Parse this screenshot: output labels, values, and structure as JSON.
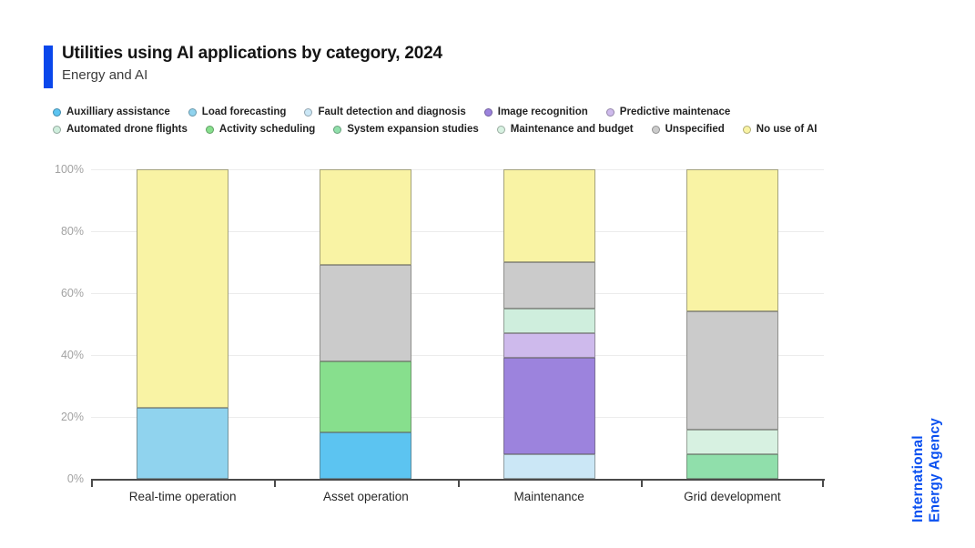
{
  "header": {
    "title": "Utilities using AI applications by category, 2024",
    "subtitle": "Energy and AI"
  },
  "branding": {
    "accent_color": "#0a47eb",
    "logo_color": "#0a50f0",
    "agency_line1": "International",
    "agency_line2": "Energy Agency"
  },
  "chart_data": {
    "type": "bar",
    "variant": "stacked-100-percent",
    "title": "Utilities using AI applications by category, 2024",
    "xlabel": "",
    "ylabel": "",
    "unit": "%",
    "ylim": [
      0,
      100
    ],
    "yticks": [
      0,
      20,
      40,
      60,
      80,
      100
    ],
    "ytick_suffix": "%",
    "grid": true,
    "legend_position": "top",
    "legend_layout": [
      [
        0,
        1,
        2,
        3,
        4
      ],
      [
        5,
        6,
        7,
        8,
        9,
        10
      ]
    ],
    "categories": [
      "Real-time operation",
      "Asset operation",
      "Maintenance",
      "Grid development"
    ],
    "series": [
      {
        "name": "Auxilliary assistance",
        "color": "#5cc4f1",
        "values": [
          0,
          15,
          0,
          0
        ]
      },
      {
        "name": "Load forecasting",
        "color": "#90d3ee",
        "values": [
          23,
          0,
          0,
          0
        ]
      },
      {
        "name": "Fault detection and diagnosis",
        "color": "#cbe7f6",
        "values": [
          0,
          0,
          8,
          0
        ]
      },
      {
        "name": "Image recognition",
        "color": "#9c83dd",
        "values": [
          0,
          0,
          31,
          0
        ]
      },
      {
        "name": "Predictive maintenace",
        "color": "#cebaec",
        "values": [
          0,
          0,
          8,
          0
        ]
      },
      {
        "name": "Automated drone flights",
        "color": "#cfeedd",
        "values": [
          0,
          0,
          8,
          0
        ]
      },
      {
        "name": "Activity scheduling",
        "color": "#87df8d",
        "values": [
          0,
          23,
          0,
          0
        ]
      },
      {
        "name": "System expansion studies",
        "color": "#90dfab",
        "values": [
          0,
          0,
          0,
          8
        ]
      },
      {
        "name": "Maintenance and budget",
        "color": "#d7f1e1",
        "values": [
          0,
          0,
          0,
          8
        ]
      },
      {
        "name": "Unspecified",
        "color": "#cbcbcb",
        "values": [
          0,
          31,
          15,
          38
        ]
      },
      {
        "name": "No use of AI",
        "color": "#f9f3a4",
        "values": [
          77,
          31,
          30,
          46
        ]
      }
    ]
  }
}
